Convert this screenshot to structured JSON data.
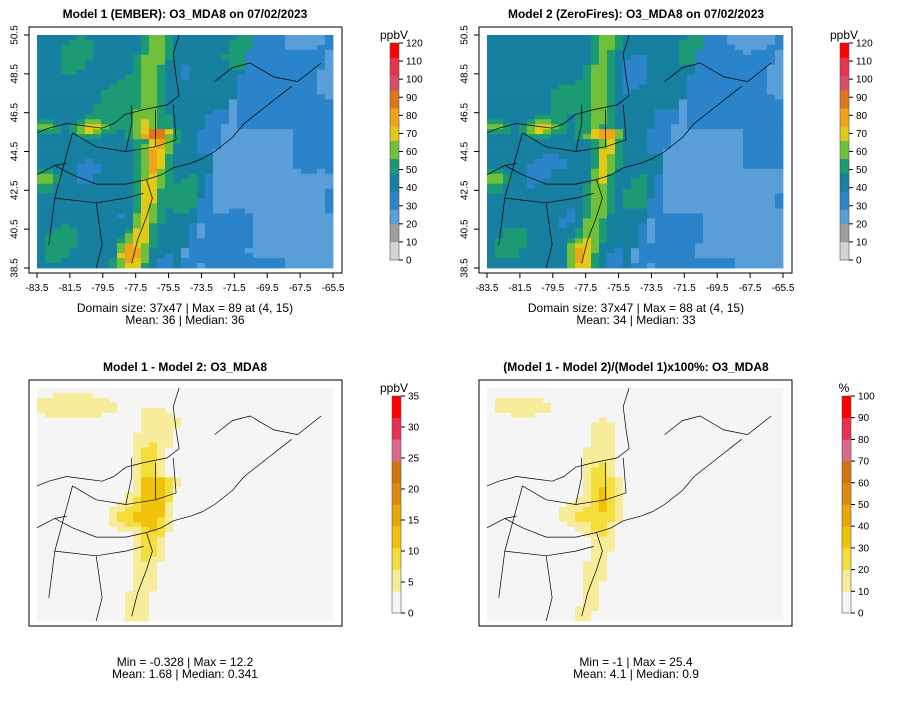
{
  "chart_data": [
    {
      "type": "heatmap",
      "title": "Model 1 (EMBER): O3_MDA8 on 07/02/2023",
      "x_ticks": [
        "-83.5",
        "-81.5",
        "-79.5",
        "-77.5",
        "-75.5",
        "-73.5",
        "-71.5",
        "-69.5",
        "-67.5",
        "-65.5"
      ],
      "y_ticks": [
        "38.5",
        "40.5",
        "42.5",
        "44.5",
        "46.5",
        "48.5",
        "50.5"
      ],
      "xlim": [
        -84.2,
        -64.8
      ],
      "ylim": [
        38.2,
        51.0
      ],
      "colorbar": {
        "unit": "ppbV",
        "ticks": [
          "0",
          "10",
          "20",
          "30",
          "40",
          "50",
          "60",
          "70",
          "80",
          "90",
          "100",
          "110",
          "120"
        ],
        "min": 0,
        "max": 120
      },
      "stats": [
        "Domain size: 37x47 | Max = 89 at (4, 15)",
        "Mean: 36 |  Median: 36"
      ],
      "domain_size": [
        37,
        47
      ],
      "max": 89,
      "max_cell": [
        4,
        15
      ],
      "mean": 36,
      "median": 36
    },
    {
      "type": "heatmap",
      "title": "Model 2 (ZeroFires): O3_MDA8 on 07/02/2023",
      "x_ticks": [
        "-83.5",
        "-81.5",
        "-79.5",
        "-77.5",
        "-75.5",
        "-73.5",
        "-71.5",
        "-69.5",
        "-67.5",
        "-65.5"
      ],
      "y_ticks": [
        "38.5",
        "40.5",
        "42.5",
        "44.5",
        "46.5",
        "48.5",
        "50.5"
      ],
      "xlim": [
        -84.2,
        -64.8
      ],
      "ylim": [
        38.2,
        51.0
      ],
      "colorbar": {
        "unit": "ppbV",
        "ticks": [
          "0",
          "10",
          "20",
          "30",
          "40",
          "50",
          "60",
          "70",
          "80",
          "90",
          "100",
          "110",
          "120"
        ],
        "min": 0,
        "max": 120
      },
      "stats": [
        "Domain size: 37x47 | Max = 88 at (4, 15)",
        "Mean: 34 |  Median: 33"
      ],
      "domain_size": [
        37,
        47
      ],
      "max": 88,
      "max_cell": [
        4,
        15
      ],
      "mean": 34,
      "median": 33
    },
    {
      "type": "heatmap",
      "title": "Model 1 - Model 2: O3_MDA8",
      "colorbar": {
        "unit": "ppbV",
        "ticks": [
          "0",
          "5",
          "10",
          "15",
          "20",
          "25",
          "30",
          "35"
        ],
        "min": 0,
        "max": 35
      },
      "stats": [
        "Min = -0.328 | Max = 12.2",
        "Mean: 1.68 |  Median: 0.341"
      ],
      "min": -0.328,
      "max": 12.2,
      "mean": 1.68,
      "median": 0.341
    },
    {
      "type": "heatmap",
      "title": "(Model 1 - Model 2)/(Model 1)x100%: O3_MDA8",
      "colorbar": {
        "unit": "%",
        "ticks": [
          "0",
          "10",
          "20",
          "30",
          "40",
          "50",
          "60",
          "70",
          "80",
          "90",
          "100"
        ],
        "min": 0,
        "max": 100
      },
      "stats": [
        "Min = -1 | Max = 25.4",
        "Mean: 4.1 |  Median: 0.9"
      ],
      "min": -1,
      "max": 25.4,
      "mean": 4.1,
      "median": 0.9
    }
  ],
  "colors": {
    "ozone_scale": [
      "#d4d4d4",
      "#9e9e9e",
      "#5a9ed8",
      "#2b84c9",
      "#177fa0",
      "#1b9a73",
      "#6fbf3b",
      "#e2c918",
      "#f0a318",
      "#e0761a",
      "#d94d6a",
      "#e8344a",
      "#ff0000"
    ],
    "diff_scale": [
      "#f5f5f5",
      "#f6ec9a",
      "#f5dd3a",
      "#f0c20a",
      "#e8a608",
      "#de8a0c",
      "#d4720e",
      "#d96a8c",
      "#e83050",
      "#ff0000"
    ],
    "map_lines": "#000000"
  }
}
